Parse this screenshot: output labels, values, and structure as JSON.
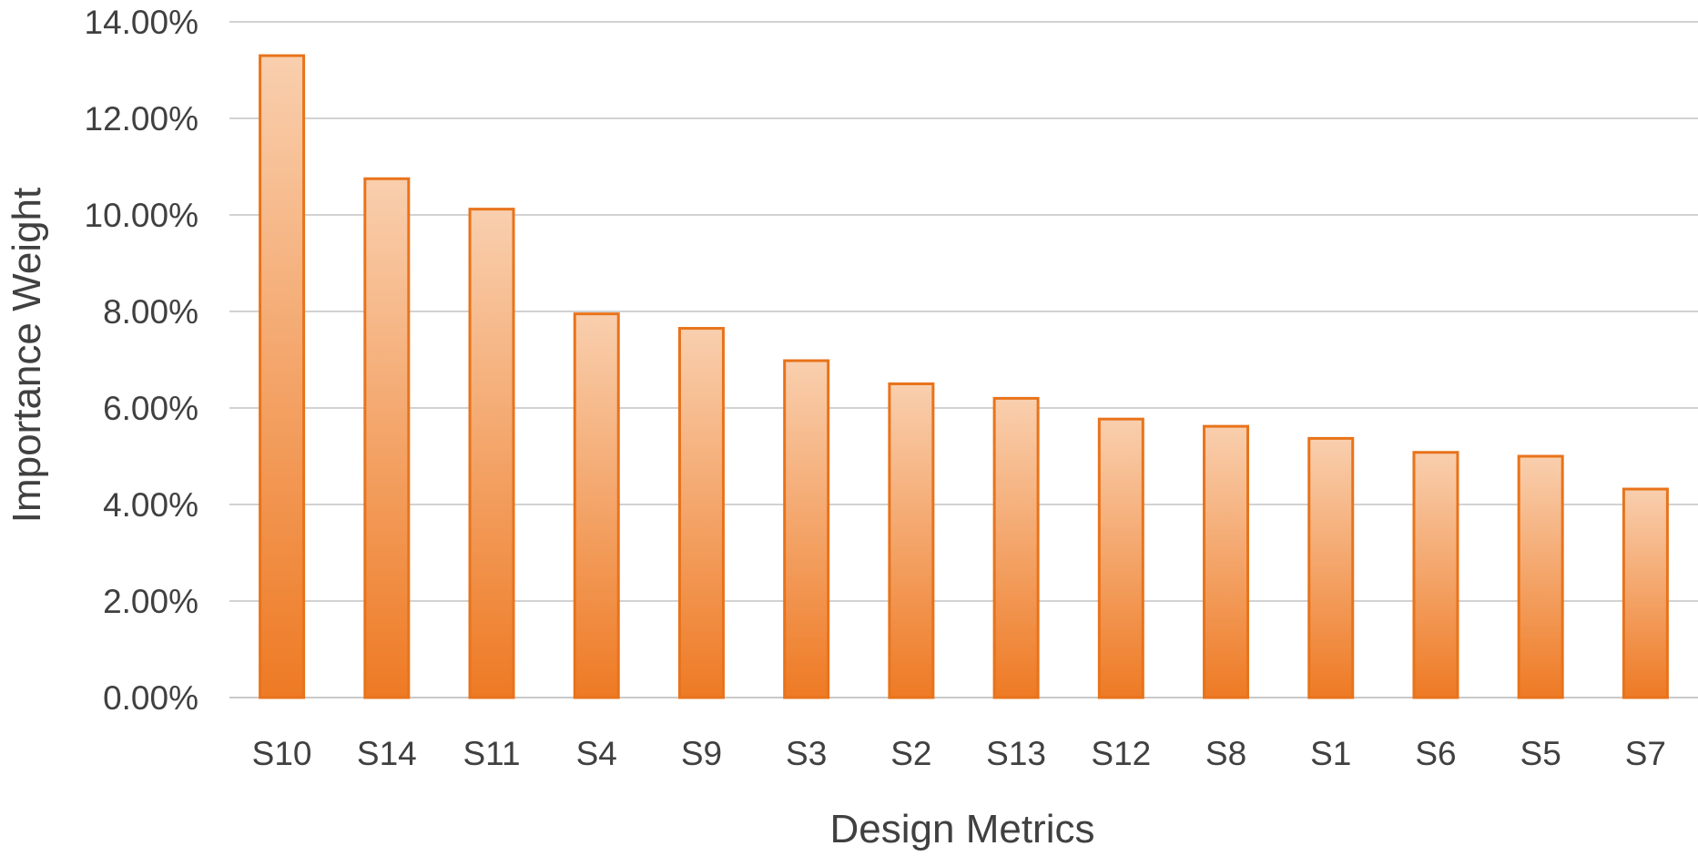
{
  "chart_data": {
    "type": "bar",
    "title": "",
    "xlabel": "Design Metrics",
    "ylabel": "Importance Weight",
    "categories": [
      "S10",
      "S14",
      "S11",
      "S4",
      "S9",
      "S3",
      "S2",
      "S13",
      "S12",
      "S8",
      "S1",
      "S6",
      "S5",
      "S7"
    ],
    "values": [
      13.3,
      10.75,
      10.12,
      7.95,
      7.65,
      6.98,
      6.5,
      6.2,
      5.77,
      5.62,
      5.37,
      5.08,
      5.0,
      4.32
    ],
    "value_unit": "%",
    "ylim": [
      0,
      14
    ],
    "yticks": [
      0,
      2,
      4,
      6,
      8,
      10,
      12,
      14
    ],
    "ytick_labels": [
      "0.00%",
      "2.00%",
      "4.00%",
      "6.00%",
      "8.00%",
      "10.00%",
      "12.00%",
      "14.00%"
    ],
    "grid": true,
    "legend": "none",
    "colors": {
      "bar_top": "#f9cfae",
      "bar_bottom": "#ee7a24",
      "bar_stroke": "#e8731b",
      "grid": "#b7b7b7",
      "text": "#404040"
    }
  }
}
